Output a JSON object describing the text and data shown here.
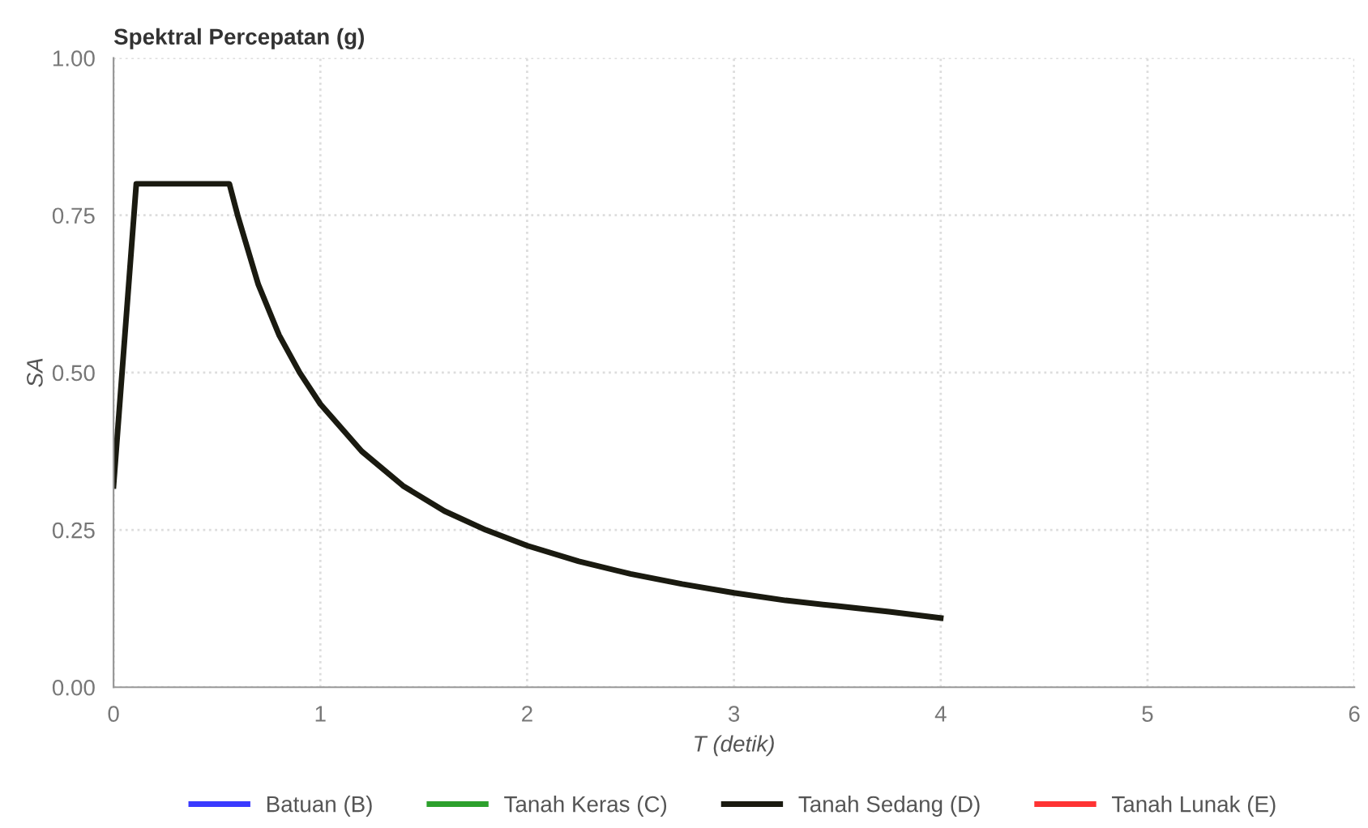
{
  "chart_data": {
    "type": "line",
    "title": "Spektral Percepatan (g)",
    "xlabel": "T (detik)",
    "ylabel": "SA",
    "xlim": [
      0,
      6
    ],
    "xticks": [
      0,
      1,
      2,
      3,
      4,
      5,
      6
    ],
    "ylim": [
      0,
      1
    ],
    "yticks": [
      {
        "value": 0,
        "label": "0.00"
      },
      {
        "value": 0.25,
        "label": "0.25"
      },
      {
        "value": 0.5,
        "label": "0.50"
      },
      {
        "value": 0.75,
        "label": "0.75"
      },
      {
        "value": 1,
        "label": "1.00"
      }
    ],
    "grid": true,
    "legend": "bottom",
    "marker": "none",
    "line_style": "solid",
    "series": [
      {
        "name": "Batuan (B)",
        "color": "#3a3aff"
      },
      {
        "name": "Tanah Keras (C)",
        "color": "#2ca02c"
      },
      {
        "name": "Tanah Sedang (D)",
        "color": "#1a1a10",
        "x": [
          0,
          0.11,
          0.56,
          0.6,
          0.7,
          0.8,
          0.9,
          1.0,
          1.2,
          1.4,
          1.6,
          1.8,
          2.0,
          2.25,
          2.5,
          2.75,
          3.0,
          3.25,
          3.5,
          3.75,
          4.0
        ],
        "values": [
          0.32,
          0.8,
          0.8,
          0.75,
          0.64,
          0.56,
          0.5,
          0.45,
          0.375,
          0.32,
          0.28,
          0.25,
          0.225,
          0.2,
          0.18,
          0.164,
          0.15,
          0.138,
          0.129,
          0.12,
          0.11
        ]
      },
      {
        "name": "Tanah Lunak (E)",
        "color": "#ff3333"
      }
    ]
  }
}
